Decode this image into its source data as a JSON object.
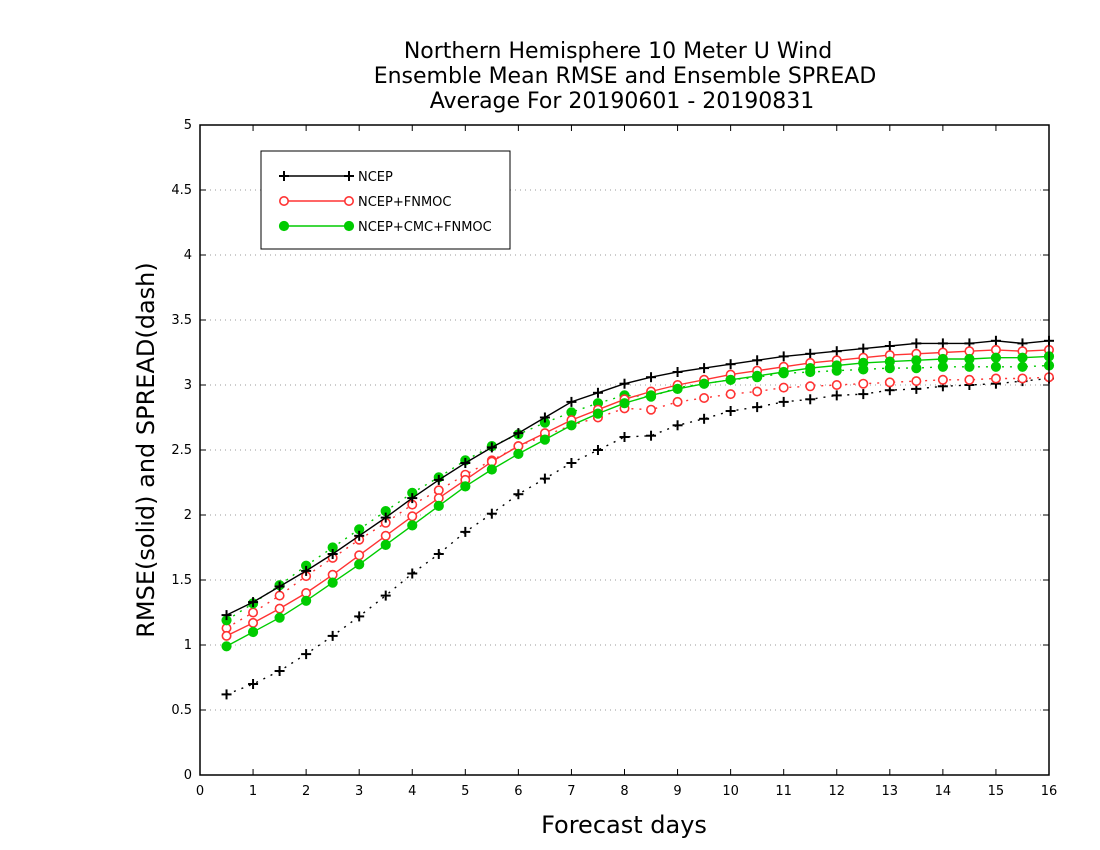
{
  "chart_data": {
    "type": "line",
    "title": [
      "Northern Hemisphere 10 Meter U Wind",
      "Ensemble Mean RMSE and Ensemble SPREAD",
      "Average For 20190601 - 20190831"
    ],
    "xlabel": "Forecast days",
    "ylabel": "RMSE(solid) and SPREAD(dash)",
    "xlim": [
      0,
      16
    ],
    "ylim": [
      0,
      5
    ],
    "x_ticks": [
      "0",
      "1",
      "2",
      "3",
      "4",
      "5",
      "6",
      "7",
      "8",
      "9",
      "10",
      "11",
      "12",
      "13",
      "14",
      "15",
      "16"
    ],
    "y_ticks": [
      "0",
      "0.5",
      "1",
      "1.5",
      "2",
      "2.5",
      "3",
      "3.5",
      "4",
      "4.5",
      "5"
    ],
    "grid": "horizontal dotted",
    "legend_position": "top-left",
    "x": [
      0.5,
      1,
      1.5,
      2,
      2.5,
      3,
      3.5,
      4,
      4.5,
      5,
      5.5,
      6,
      6.5,
      7,
      7.5,
      8,
      8.5,
      9,
      9.5,
      10,
      10.5,
      11,
      11.5,
      12,
      12.5,
      13,
      13.5,
      14,
      14.5,
      15,
      15.5,
      16
    ],
    "series": [
      {
        "name": "NCEP",
        "color": "#000000",
        "marker": "plus",
        "rmse": [
          1.23,
          1.33,
          1.45,
          1.57,
          1.7,
          1.84,
          1.98,
          2.13,
          2.27,
          2.4,
          2.52,
          2.63,
          2.75,
          2.87,
          2.94,
          3.01,
          3.06,
          3.1,
          3.13,
          3.16,
          3.19,
          3.22,
          3.24,
          3.26,
          3.28,
          3.3,
          3.32,
          3.32,
          3.32,
          3.34,
          3.32,
          3.34
        ],
        "spread": [
          0.62,
          0.7,
          0.8,
          0.93,
          1.07,
          1.22,
          1.38,
          1.55,
          1.7,
          1.87,
          2.01,
          2.16,
          2.28,
          2.4,
          2.5,
          2.6,
          2.61,
          2.69,
          2.74,
          2.8,
          2.83,
          2.87,
          2.89,
          2.92,
          2.93,
          2.96,
          2.97,
          2.99,
          3.0,
          3.01,
          3.03,
          3.05
        ]
      },
      {
        "name": "NCEP+FNMOC",
        "color": "#ff3333",
        "marker": "open-circle",
        "rmse": [
          1.07,
          1.17,
          1.28,
          1.4,
          1.54,
          1.69,
          1.84,
          1.99,
          2.13,
          2.27,
          2.41,
          2.53,
          2.63,
          2.73,
          2.81,
          2.89,
          2.95,
          3.0,
          3.04,
          3.08,
          3.11,
          3.14,
          3.17,
          3.19,
          3.21,
          3.23,
          3.24,
          3.25,
          3.26,
          3.27,
          3.26,
          3.27
        ],
        "spread": [
          1.13,
          1.25,
          1.38,
          1.53,
          1.67,
          1.81,
          1.94,
          2.08,
          2.19,
          2.31,
          2.42,
          2.53,
          2.61,
          2.69,
          2.75,
          2.82,
          2.81,
          2.87,
          2.9,
          2.93,
          2.95,
          2.98,
          2.99,
          3.0,
          3.01,
          3.02,
          3.03,
          3.04,
          3.04,
          3.05,
          3.05,
          3.06
        ]
      },
      {
        "name": "NCEP+CMC+FNMOC",
        "color": "#00cc00",
        "marker": "filled-circle",
        "rmse": [
          0.99,
          1.1,
          1.21,
          1.34,
          1.48,
          1.62,
          1.77,
          1.92,
          2.07,
          2.22,
          2.35,
          2.47,
          2.58,
          2.69,
          2.78,
          2.86,
          2.92,
          2.97,
          3.01,
          3.04,
          3.07,
          3.1,
          3.13,
          3.15,
          3.17,
          3.18,
          3.19,
          3.2,
          3.2,
          3.21,
          3.21,
          3.22
        ],
        "spread": [
          1.19,
          1.32,
          1.46,
          1.61,
          1.75,
          1.89,
          2.03,
          2.17,
          2.29,
          2.42,
          2.53,
          2.62,
          2.71,
          2.79,
          2.86,
          2.92,
          2.91,
          2.98,
          3.01,
          3.04,
          3.06,
          3.09,
          3.1,
          3.11,
          3.12,
          3.13,
          3.13,
          3.14,
          3.14,
          3.14,
          3.14,
          3.15
        ]
      }
    ]
  }
}
